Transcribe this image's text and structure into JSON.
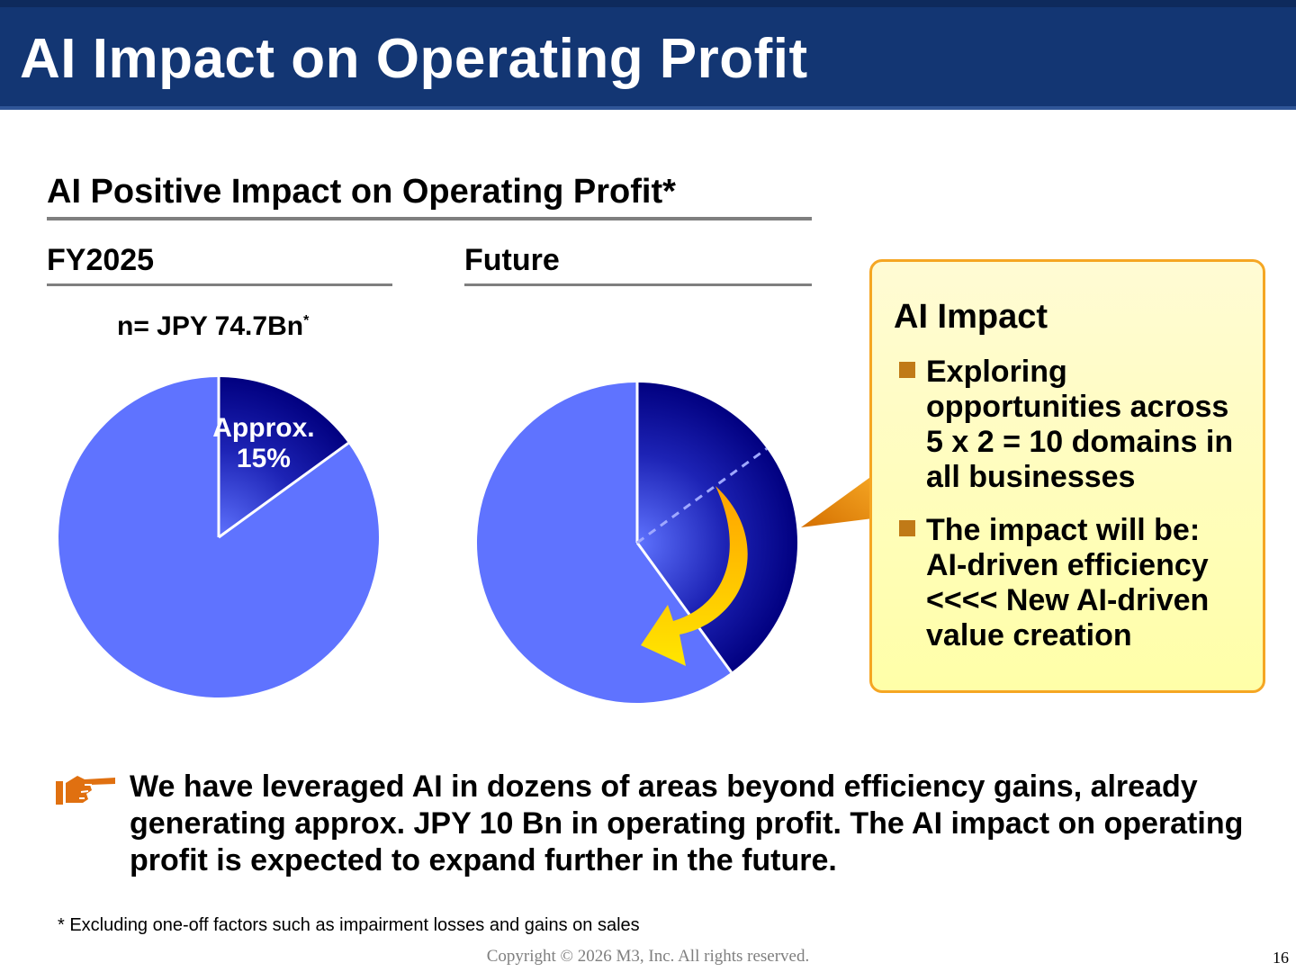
{
  "page": {
    "title": "AI Impact on Operating Profit",
    "section_title": "AI Positive Impact on Operating Profit*",
    "page_number": "16",
    "copyright": "Copyright © 2026  M3, Inc.  All rights reserved."
  },
  "colors": {
    "header_bg": "#133673",
    "pie_light": "#5f73ff",
    "pie_dark": "#010080",
    "arrow_orange": "#ffa200",
    "arrow_yellow": "#ffe600",
    "callout_border": "#f5a623"
  },
  "chart_data": [
    {
      "type": "pie",
      "title": "FY2025",
      "subtitle_main": "n= JPY 74.7Bn",
      "subtitle_mark": "*",
      "slices": [
        {
          "label_line1": "Approx.",
          "label_line2": "15%",
          "value": 15
        },
        {
          "label_line1": "",
          "label_line2": "",
          "value": 85
        }
      ]
    },
    {
      "type": "pie",
      "title": "Future",
      "slices": [
        {
          "label": "",
          "value": 40
        },
        {
          "label": "",
          "value": 60
        }
      ],
      "previous_share": 15,
      "annotation": "arrow indicating expansion of AI share"
    }
  ],
  "callout": {
    "title": "AI Impact",
    "bullets": [
      "Exploring opportunities across 5 x 2 = 10 domains in all businesses",
      "The impact will be: AI-driven efficiency <<<< New AI-driven value creation"
    ]
  },
  "message": {
    "icon": "pointing-hand-icon",
    "text": "We have leveraged AI in dozens of areas beyond efficiency gains, already generating approx. JPY 10 Bn in operating profit. The AI impact on operating profit is expected to expand further in the future."
  },
  "footnote": "*  Excluding one-off factors such as impairment losses and gains on sales"
}
